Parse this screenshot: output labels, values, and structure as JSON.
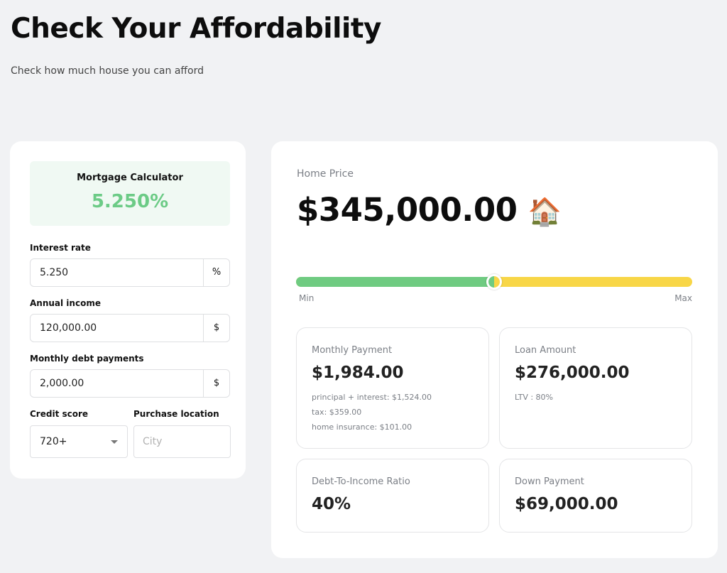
{
  "header": {
    "title": "Check Your Affordability",
    "subtitle": "Check how much house you can afford"
  },
  "calculator": {
    "summary_title": "Mortgage Calculator",
    "summary_rate": "5.250%",
    "interest_rate": {
      "label": "Interest rate",
      "value": "5.250",
      "addon": "%"
    },
    "annual_income": {
      "label": "Annual income",
      "value": "120,000.00",
      "addon": "$"
    },
    "monthly_debt": {
      "label": "Monthly debt payments",
      "value": "2,000.00",
      "addon": "$"
    },
    "credit_score": {
      "label": "Credit score",
      "value": "720+"
    },
    "purchase_location": {
      "label": "Purchase location",
      "value": "",
      "placeholder": "City"
    }
  },
  "results": {
    "home_price_label": "Home Price",
    "home_price": "$345,000.00",
    "home_icon": "house-icon",
    "home_emoji": "🏠",
    "slider": {
      "min_label": "Min",
      "max_label": "Max",
      "position": 0.5
    },
    "monthly_payment": {
      "title": "Monthly Payment",
      "value": "$1,984.00",
      "principal_interest": "principal + interest: $1,524.00",
      "tax": "tax: $359.00",
      "insurance": "home insurance: $101.00"
    },
    "loan_amount": {
      "title": "Loan Amount",
      "value": "$276,000.00",
      "ltv": "LTV : 80%"
    },
    "dti": {
      "title": "Debt-To-Income Ratio",
      "value": "40%"
    },
    "down_payment": {
      "title": "Down Payment",
      "value": "$69,000.00"
    }
  },
  "colors": {
    "accent_green": "#6ccb86",
    "accent_yellow": "#f8d647",
    "background": "#f1f2f4"
  }
}
